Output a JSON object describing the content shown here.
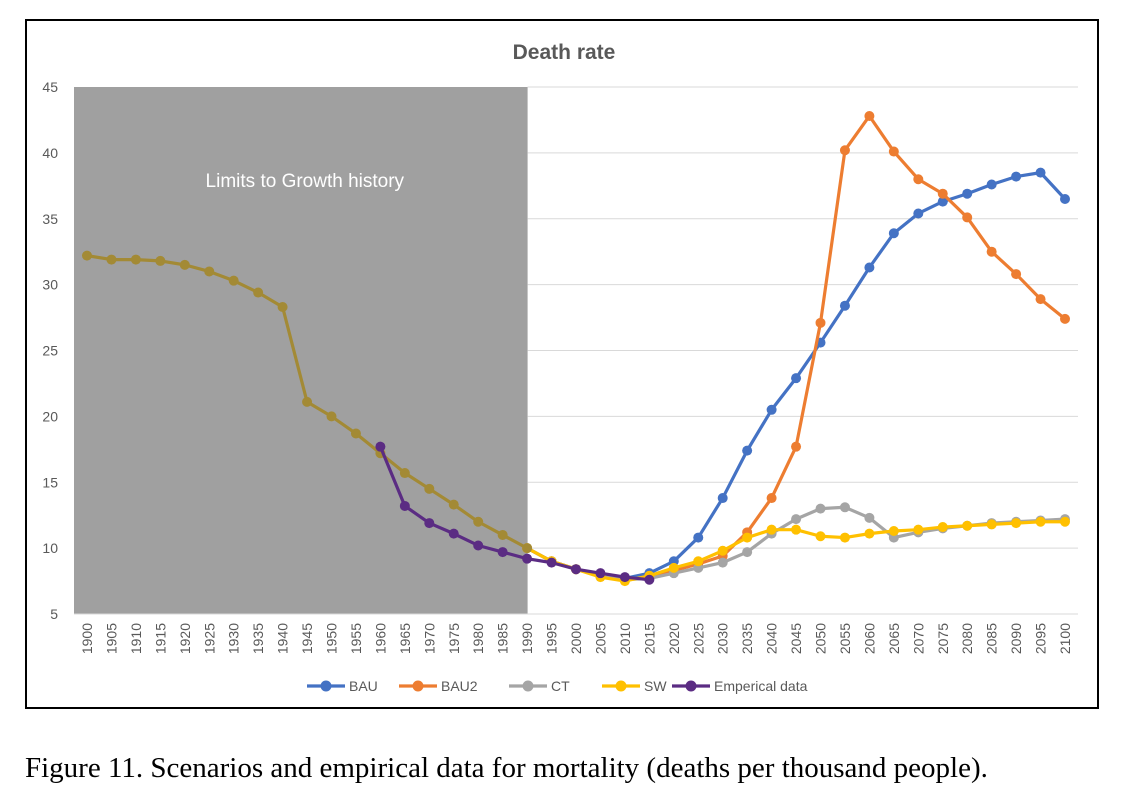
{
  "caption": "Figure 11. Scenarios and empirical data for mortality (deaths per thousand people).",
  "chart_data": {
    "type": "line",
    "title": "Death rate",
    "xlabel": "",
    "ylabel": "",
    "ylim": [
      5,
      45
    ],
    "yticks": [
      5,
      10,
      15,
      20,
      25,
      30,
      35,
      40,
      45
    ],
    "grid": "horizontal",
    "legend_position": "bottom",
    "shaded_region": {
      "label": "Limits to Growth history",
      "x_start": 1900,
      "x_end": 1990,
      "color": "#a0a0a0"
    },
    "categories": [
      1900,
      1905,
      1910,
      1915,
      1920,
      1925,
      1930,
      1935,
      1940,
      1945,
      1950,
      1955,
      1960,
      1965,
      1970,
      1975,
      1980,
      1985,
      1990,
      1995,
      2000,
      2005,
      2010,
      2015,
      2020,
      2025,
      2030,
      2035,
      2040,
      2045,
      2050,
      2055,
      2060,
      2065,
      2070,
      2075,
      2080,
      2085,
      2090,
      2095,
      2100
    ],
    "historical_color": "#a38a35",
    "historical": {
      "x": [
        1900,
        1905,
        1910,
        1915,
        1920,
        1925,
        1930,
        1935,
        1940,
        1945,
        1950,
        1955,
        1960,
        1965,
        1970,
        1975,
        1980,
        1985,
        1990
      ],
      "values": [
        32.2,
        31.9,
        31.9,
        31.8,
        31.5,
        31.0,
        30.3,
        29.4,
        28.3,
        21.1,
        20.0,
        18.7,
        17.2,
        15.7,
        14.5,
        13.3,
        12.0,
        11.0,
        10.0
      ]
    },
    "series": [
      {
        "name": "BAU",
        "color": "#4472c4",
        "x": [
          1990,
          1995,
          2000,
          2005,
          2010,
          2015,
          2020,
          2025,
          2030,
          2035,
          2040,
          2045,
          2050,
          2055,
          2060,
          2065,
          2070,
          2075,
          2080,
          2085,
          2090,
          2095,
          2100
        ],
        "values": [
          10.0,
          9.0,
          8.4,
          8.0,
          7.7,
          8.1,
          9.0,
          10.8,
          13.8,
          17.4,
          20.5,
          22.9,
          25.6,
          28.4,
          31.3,
          33.9,
          35.4,
          36.3,
          36.9,
          37.6,
          38.2,
          38.5,
          36.5
        ]
      },
      {
        "name": "BAU2",
        "color": "#ed7d31",
        "x": [
          1990,
          1995,
          2000,
          2005,
          2010,
          2015,
          2020,
          2025,
          2030,
          2035,
          2040,
          2045,
          2050,
          2055,
          2060,
          2065,
          2070,
          2075,
          2080,
          2085,
          2090,
          2095,
          2100
        ],
        "values": [
          10.0,
          9.0,
          8.4,
          7.9,
          7.6,
          7.8,
          8.3,
          8.8,
          9.4,
          11.2,
          13.8,
          17.7,
          27.1,
          40.2,
          42.8,
          40.1,
          38.0,
          36.9,
          35.1,
          32.5,
          30.8,
          28.9,
          27.4
        ]
      },
      {
        "name": "CT",
        "color": "#a5a5a5",
        "x": [
          1990,
          1995,
          2000,
          2005,
          2010,
          2015,
          2020,
          2025,
          2030,
          2035,
          2040,
          2045,
          2050,
          2055,
          2060,
          2065,
          2070,
          2075,
          2080,
          2085,
          2090,
          2095,
          2100
        ],
        "values": [
          10.0,
          9.0,
          8.4,
          7.9,
          7.6,
          7.7,
          8.1,
          8.5,
          8.9,
          9.7,
          11.1,
          12.2,
          13.0,
          13.1,
          12.3,
          10.8,
          11.2,
          11.5,
          11.7,
          11.9,
          12.0,
          12.1,
          12.2
        ]
      },
      {
        "name": "SW",
        "color": "#ffc000",
        "x": [
          1990,
          1995,
          2000,
          2005,
          2010,
          2015,
          2020,
          2025,
          2030,
          2035,
          2040,
          2045,
          2050,
          2055,
          2060,
          2065,
          2070,
          2075,
          2080,
          2085,
          2090,
          2095,
          2100
        ],
        "values": [
          10.0,
          9.0,
          8.4,
          7.8,
          7.5,
          7.9,
          8.5,
          9.0,
          9.8,
          10.8,
          11.4,
          11.4,
          10.9,
          10.8,
          11.1,
          11.3,
          11.4,
          11.6,
          11.7,
          11.8,
          11.9,
          12.0,
          12.0
        ]
      },
      {
        "name": "Emperical data",
        "color": "#5b2c83",
        "x": [
          1960,
          1965,
          1970,
          1975,
          1980,
          1985,
          1990,
          1995,
          2000,
          2005,
          2010,
          2015
        ],
        "values": [
          17.7,
          13.2,
          11.9,
          11.1,
          10.2,
          9.7,
          9.2,
          8.9,
          8.4,
          8.1,
          7.8,
          7.6
        ]
      }
    ]
  }
}
